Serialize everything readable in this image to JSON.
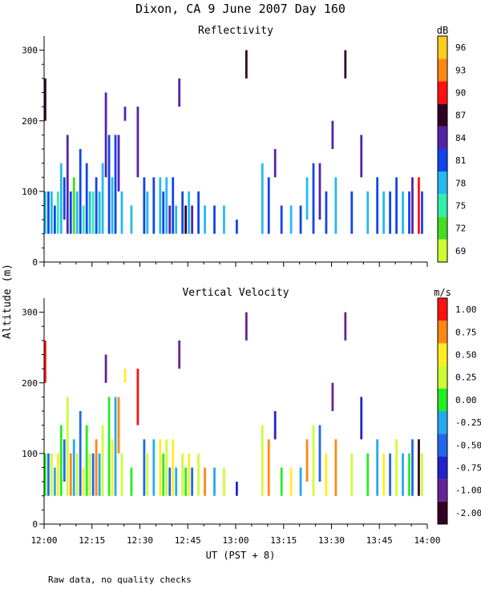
{
  "title": "Dixon, CA  9 June 2007  Day 160",
  "footnote": "Raw data, no quality checks",
  "shared_ylabel": "Altitude (m)",
  "shared_xlabel": "UT  (PST + 8)",
  "chart_data": [
    {
      "type": "heatmap",
      "title": "Reflectivity",
      "xlabel": "UT  (PST + 8)",
      "ylabel": "Altitude (m)",
      "x_ticks": [
        "12:00",
        "12:15",
        "12:30",
        "12:45",
        "13:00",
        "13:15",
        "13:30",
        "13:45",
        "14:00"
      ],
      "x_range_minutes": [
        0,
        120
      ],
      "y_ticks": [
        0,
        100,
        200,
        300
      ],
      "ylim": [
        0,
        320
      ],
      "colorbar": {
        "unit": "dB",
        "levels": [
          "69",
          "72",
          "75",
          "78",
          "81",
          "84",
          "87",
          "90",
          "93",
          "96"
        ],
        "colors": [
          "#ccff33",
          "#44dd22",
          "#33eeaa",
          "#22bbee",
          "#1144ee",
          "#5522aa",
          "#330022",
          "#ff1111",
          "#ff8811",
          "#ffcc22"
        ]
      },
      "cells": [
        {
          "t": 0,
          "z": 40,
          "h": 60,
          "c": 3
        },
        {
          "t": 1,
          "z": 40,
          "h": 60,
          "c": 4
        },
        {
          "t": 0,
          "z": 200,
          "h": 60,
          "c": 6
        },
        {
          "t": 2,
          "z": 40,
          "h": 60,
          "c": 3
        },
        {
          "t": 3,
          "z": 40,
          "h": 40,
          "c": 4
        },
        {
          "t": 4,
          "z": 40,
          "h": 60,
          "c": 2
        },
        {
          "t": 5,
          "z": 40,
          "h": 100,
          "c": 3
        },
        {
          "t": 6,
          "z": 60,
          "h": 60,
          "c": 4
        },
        {
          "t": 7,
          "z": 40,
          "h": 140,
          "c": 5
        },
        {
          "t": 8,
          "z": 40,
          "h": 60,
          "c": 4
        },
        {
          "t": 9,
          "z": 40,
          "h": 80,
          "c": 1
        },
        {
          "t": 10,
          "z": 40,
          "h": 60,
          "c": 3
        },
        {
          "t": 11,
          "z": 40,
          "h": 120,
          "c": 4
        },
        {
          "t": 12,
          "z": 40,
          "h": 40,
          "c": 2
        },
        {
          "t": 13,
          "z": 40,
          "h": 100,
          "c": 4
        },
        {
          "t": 14,
          "z": 40,
          "h": 60,
          "c": 3
        },
        {
          "t": 15,
          "z": 40,
          "h": 60,
          "c": 2
        },
        {
          "t": 16,
          "z": 40,
          "h": 80,
          "c": 4
        },
        {
          "t": 17,
          "z": 40,
          "h": 60,
          "c": 3
        },
        {
          "t": 18,
          "z": 40,
          "h": 100,
          "c": 3
        },
        {
          "t": 19,
          "z": 120,
          "h": 120,
          "c": 5
        },
        {
          "t": 20,
          "z": 40,
          "h": 140,
          "c": 4
        },
        {
          "t": 21,
          "z": 40,
          "h": 80,
          "c": 3
        },
        {
          "t": 22,
          "z": 40,
          "h": 140,
          "c": 4
        },
        {
          "t": 23,
          "z": 100,
          "h": 80,
          "c": 5
        },
        {
          "t": 24,
          "z": 40,
          "h": 60,
          "c": 3
        },
        {
          "t": 25,
          "z": 200,
          "h": 20,
          "c": 5
        },
        {
          "t": 27,
          "z": 40,
          "h": 40,
          "c": 3
        },
        {
          "t": 29,
          "z": 120,
          "h": 100,
          "c": 5
        },
        {
          "t": 31,
          "z": 40,
          "h": 80,
          "c": 4
        },
        {
          "t": 32,
          "z": 40,
          "h": 60,
          "c": 3
        },
        {
          "t": 34,
          "z": 40,
          "h": 80,
          "c": 4
        },
        {
          "t": 36,
          "z": 40,
          "h": 80,
          "c": 3
        },
        {
          "t": 37,
          "z": 40,
          "h": 60,
          "c": 4
        },
        {
          "t": 38,
          "z": 40,
          "h": 80,
          "c": 3
        },
        {
          "t": 39,
          "z": 40,
          "h": 40,
          "c": 5
        },
        {
          "t": 40,
          "z": 40,
          "h": 80,
          "c": 4
        },
        {
          "t": 41,
          "z": 40,
          "h": 40,
          "c": 3
        },
        {
          "t": 42,
          "z": 220,
          "h": 40,
          "c": 5
        },
        {
          "t": 43,
          "z": 40,
          "h": 60,
          "c": 4
        },
        {
          "t": 44,
          "z": 40,
          "h": 40,
          "c": 6
        },
        {
          "t": 45,
          "z": 40,
          "h": 60,
          "c": 3
        },
        {
          "t": 46,
          "z": 40,
          "h": 40,
          "c": 5
        },
        {
          "t": 48,
          "z": 40,
          "h": 60,
          "c": 4
        },
        {
          "t": 50,
          "z": 40,
          "h": 40,
          "c": 3
        },
        {
          "t": 53,
          "z": 40,
          "h": 40,
          "c": 4
        },
        {
          "t": 56,
          "z": 40,
          "h": 40,
          "c": 3
        },
        {
          "t": 60,
          "z": 40,
          "h": 20,
          "c": 4
        },
        {
          "t": 63,
          "z": 260,
          "h": 40,
          "c": 6
        },
        {
          "t": 68,
          "z": 40,
          "h": 100,
          "c": 3
        },
        {
          "t": 70,
          "z": 40,
          "h": 80,
          "c": 4
        },
        {
          "t": 72,
          "z": 120,
          "h": 40,
          "c": 5
        },
        {
          "t": 74,
          "z": 40,
          "h": 40,
          "c": 4
        },
        {
          "t": 77,
          "z": 40,
          "h": 40,
          "c": 3
        },
        {
          "t": 80,
          "z": 40,
          "h": 40,
          "c": 4
        },
        {
          "t": 82,
          "z": 60,
          "h": 60,
          "c": 3
        },
        {
          "t": 84,
          "z": 40,
          "h": 100,
          "c": 4
        },
        {
          "t": 86,
          "z": 60,
          "h": 80,
          "c": 5
        },
        {
          "t": 88,
          "z": 40,
          "h": 60,
          "c": 4
        },
        {
          "t": 90,
          "z": 160,
          "h": 40,
          "c": 5
        },
        {
          "t": 91,
          "z": 40,
          "h": 80,
          "c": 3
        },
        {
          "t": 94,
          "z": 260,
          "h": 40,
          "c": 6
        },
        {
          "t": 96,
          "z": 40,
          "h": 60,
          "c": 4
        },
        {
          "t": 99,
          "z": 120,
          "h": 60,
          "c": 5
        },
        {
          "t": 101,
          "z": 40,
          "h": 60,
          "c": 3
        },
        {
          "t": 104,
          "z": 40,
          "h": 80,
          "c": 4
        },
        {
          "t": 106,
          "z": 40,
          "h": 60,
          "c": 3
        },
        {
          "t": 108,
          "z": 40,
          "h": 60,
          "c": 4
        },
        {
          "t": 110,
          "z": 40,
          "h": 80,
          "c": 4
        },
        {
          "t": 112,
          "z": 40,
          "h": 60,
          "c": 3
        },
        {
          "t": 114,
          "z": 40,
          "h": 60,
          "c": 4
        },
        {
          "t": 115,
          "z": 40,
          "h": 80,
          "c": 5
        },
        {
          "t": 117,
          "z": 40,
          "h": 80,
          "c": 7
        },
        {
          "t": 118,
          "z": 40,
          "h": 60,
          "c": 4
        }
      ]
    },
    {
      "type": "heatmap",
      "title": "Vertical Velocity",
      "xlabel": "UT  (PST + 8)",
      "ylabel": "Altitude (m)",
      "x_ticks": [
        "12:00",
        "12:15",
        "12:30",
        "12:45",
        "13:00",
        "13:15",
        "13:30",
        "13:45",
        "14:00"
      ],
      "x_range_minutes": [
        0,
        120
      ],
      "y_ticks": [
        0,
        100,
        200,
        300
      ],
      "ylim": [
        0,
        320
      ],
      "colorbar": {
        "unit": "m/s",
        "levels": [
          "-2.00",
          "-1.00",
          "-0.75",
          "-0.50",
          "-0.25",
          "0.00",
          "0.25",
          "0.50",
          "0.75",
          "1.00"
        ],
        "colors": [
          "#330022",
          "#662299",
          "#2222cc",
          "#2266ee",
          "#22aaee",
          "#22ee22",
          "#ccff33",
          "#ffee22",
          "#ff8811",
          "#ff1111"
        ]
      },
      "cells": [
        {
          "t": 0,
          "z": 40,
          "h": 60,
          "c": 5
        },
        {
          "t": 1,
          "z": 40,
          "h": 60,
          "c": 3
        },
        {
          "t": 0,
          "z": 200,
          "h": 60,
          "c": 9
        },
        {
          "t": 2,
          "z": 40,
          "h": 60,
          "c": 6
        },
        {
          "t": 3,
          "z": 40,
          "h": 40,
          "c": 4
        },
        {
          "t": 4,
          "z": 40,
          "h": 60,
          "c": 7
        },
        {
          "t": 5,
          "z": 40,
          "h": 100,
          "c": 5
        },
        {
          "t": 6,
          "z": 60,
          "h": 60,
          "c": 3
        },
        {
          "t": 7,
          "z": 40,
          "h": 140,
          "c": 6
        },
        {
          "t": 8,
          "z": 40,
          "h": 60,
          "c": 8
        },
        {
          "t": 9,
          "z": 40,
          "h": 80,
          "c": 4
        },
        {
          "t": 10,
          "z": 40,
          "h": 60,
          "c": 6
        },
        {
          "t": 11,
          "z": 40,
          "h": 120,
          "c": 3
        },
        {
          "t": 12,
          "z": 40,
          "h": 40,
          "c": 7
        },
        {
          "t": 13,
          "z": 40,
          "h": 100,
          "c": 5
        },
        {
          "t": 14,
          "z": 40,
          "h": 60,
          "c": 6
        },
        {
          "t": 15,
          "z": 40,
          "h": 60,
          "c": 3
        },
        {
          "t": 16,
          "z": 40,
          "h": 80,
          "c": 8
        },
        {
          "t": 17,
          "z": 40,
          "h": 60,
          "c": 4
        },
        {
          "t": 18,
          "z": 40,
          "h": 100,
          "c": 6
        },
        {
          "t": 19,
          "z": 200,
          "h": 40,
          "c": 1
        },
        {
          "t": 20,
          "z": 40,
          "h": 140,
          "c": 5
        },
        {
          "t": 21,
          "z": 40,
          "h": 80,
          "c": 7
        },
        {
          "t": 22,
          "z": 40,
          "h": 140,
          "c": 4
        },
        {
          "t": 23,
          "z": 100,
          "h": 80,
          "c": 8
        },
        {
          "t": 24,
          "z": 40,
          "h": 60,
          "c": 6
        },
        {
          "t": 25,
          "z": 200,
          "h": 20,
          "c": 7
        },
        {
          "t": 27,
          "z": 40,
          "h": 40,
          "c": 5
        },
        {
          "t": 29,
          "z": 140,
          "h": 80,
          "c": 9
        },
        {
          "t": 31,
          "z": 40,
          "h": 80,
          "c": 3
        },
        {
          "t": 32,
          "z": 40,
          "h": 60,
          "c": 6
        },
        {
          "t": 34,
          "z": 40,
          "h": 80,
          "c": 4
        },
        {
          "t": 36,
          "z": 40,
          "h": 80,
          "c": 7
        },
        {
          "t": 37,
          "z": 40,
          "h": 60,
          "c": 5
        },
        {
          "t": 38,
          "z": 40,
          "h": 80,
          "c": 6
        },
        {
          "t": 39,
          "z": 40,
          "h": 40,
          "c": 3
        },
        {
          "t": 40,
          "z": 40,
          "h": 80,
          "c": 7
        },
        {
          "t": 41,
          "z": 40,
          "h": 40,
          "c": 4
        },
        {
          "t": 42,
          "z": 220,
          "h": 40,
          "c": 1
        },
        {
          "t": 43,
          "z": 40,
          "h": 60,
          "c": 6
        },
        {
          "t": 44,
          "z": 40,
          "h": 40,
          "c": 5
        },
        {
          "t": 45,
          "z": 40,
          "h": 60,
          "c": 7
        },
        {
          "t": 46,
          "z": 40,
          "h": 40,
          "c": 3
        },
        {
          "t": 48,
          "z": 40,
          "h": 60,
          "c": 6
        },
        {
          "t": 50,
          "z": 40,
          "h": 40,
          "c": 8
        },
        {
          "t": 53,
          "z": 40,
          "h": 40,
          "c": 4
        },
        {
          "t": 56,
          "z": 40,
          "h": 40,
          "c": 6
        },
        {
          "t": 60,
          "z": 40,
          "h": 20,
          "c": 2
        },
        {
          "t": 63,
          "z": 260,
          "h": 40,
          "c": 1
        },
        {
          "t": 68,
          "z": 40,
          "h": 100,
          "c": 6
        },
        {
          "t": 70,
          "z": 40,
          "h": 80,
          "c": 8
        },
        {
          "t": 72,
          "z": 120,
          "h": 40,
          "c": 2
        },
        {
          "t": 74,
          "z": 40,
          "h": 40,
          "c": 5
        },
        {
          "t": 77,
          "z": 40,
          "h": 40,
          "c": 7
        },
        {
          "t": 80,
          "z": 40,
          "h": 40,
          "c": 4
        },
        {
          "t": 82,
          "z": 60,
          "h": 60,
          "c": 8
        },
        {
          "t": 84,
          "z": 40,
          "h": 100,
          "c": 6
        },
        {
          "t": 86,
          "z": 60,
          "h": 80,
          "c": 3
        },
        {
          "t": 88,
          "z": 40,
          "h": 60,
          "c": 7
        },
        {
          "t": 90,
          "z": 160,
          "h": 40,
          "c": 1
        },
        {
          "t": 91,
          "z": 40,
          "h": 80,
          "c": 8
        },
        {
          "t": 94,
          "z": 260,
          "h": 40,
          "c": 1
        },
        {
          "t": 96,
          "z": 40,
          "h": 60,
          "c": 6
        },
        {
          "t": 99,
          "z": 120,
          "h": 60,
          "c": 2
        },
        {
          "t": 101,
          "z": 40,
          "h": 60,
          "c": 5
        },
        {
          "t": 104,
          "z": 40,
          "h": 80,
          "c": 4
        },
        {
          "t": 106,
          "z": 40,
          "h": 60,
          "c": 7
        },
        {
          "t": 108,
          "z": 40,
          "h": 60,
          "c": 3
        },
        {
          "t": 110,
          "z": 40,
          "h": 80,
          "c": 6
        },
        {
          "t": 112,
          "z": 40,
          "h": 60,
          "c": 4
        },
        {
          "t": 114,
          "z": 40,
          "h": 60,
          "c": 5
        },
        {
          "t": 115,
          "z": 40,
          "h": 80,
          "c": 3
        },
        {
          "t": 117,
          "z": 40,
          "h": 80,
          "c": 0
        },
        {
          "t": 118,
          "z": 40,
          "h": 60,
          "c": 6
        }
      ]
    }
  ]
}
